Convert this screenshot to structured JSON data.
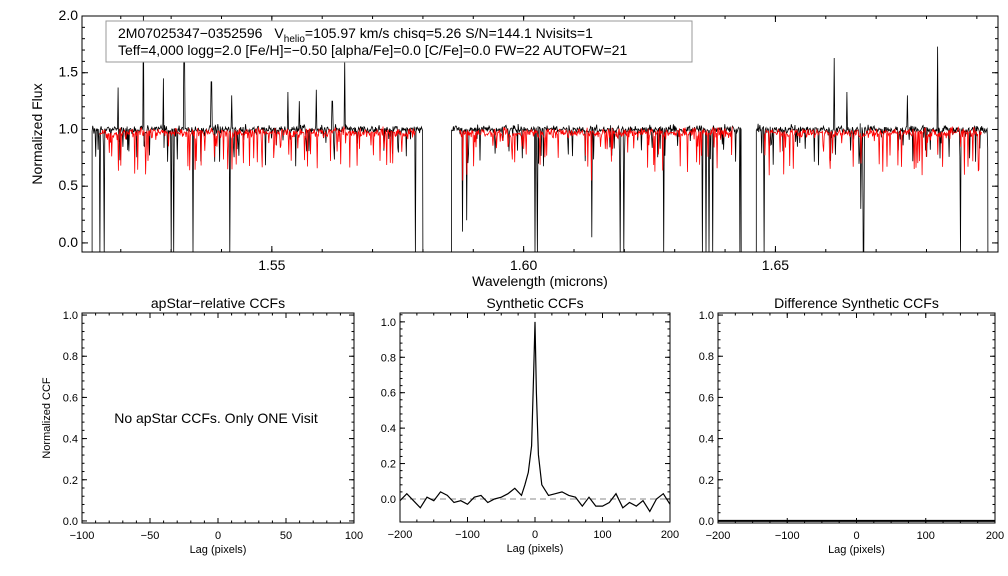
{
  "colors": {
    "observed": "#000000",
    "model": "#ff0000",
    "zero_line": "#888888"
  },
  "chart_data": [
    {
      "type": "line",
      "name": "spectrum",
      "xlabel": "Wavelength (microns)",
      "ylabel": "Normalized Flux",
      "xlim": [
        1.5123,
        1.6942
      ],
      "ylim": [
        -0.08,
        2.0
      ],
      "xticks": [
        1.55,
        1.6,
        1.65
      ],
      "xtick_labels": [
        "1.55",
        "1.60",
        "1.65"
      ],
      "yticks": [
        0.0,
        0.5,
        1.0,
        1.5,
        2.0
      ],
      "ytick_labels": [
        "0.0",
        "0.5",
        "1.0",
        "1.5",
        "2.0"
      ],
      "info_line1": {
        "star": "2M07025347−0352596",
        "v": "V",
        "v_sub": "helio",
        "v_rest": "=105.97 km/s  chisq=5.26  S/N=144.1  Nvisits=1"
      },
      "info_line2": "Teff=4,000 logg=2.0 [Fe/H]=−0.50 [alpha/Fe]=0.0 [C/Fe]=0.0 FW=22 AUTOFW=21",
      "chips_observed": [
        [
          1.5143,
          1.58
        ],
        [
          1.5857,
          1.6432
        ],
        [
          1.6462,
          1.6922
        ]
      ],
      "chips_model": [
        [
          1.5158,
          1.5785
        ],
        [
          1.5873,
          1.6415
        ],
        [
          1.6478,
          1.691
        ]
      ],
      "series": [
        {
          "name": "observed",
          "continuum": 1.0,
          "noise": 0.035,
          "emission_lines": [
            [
              1.5195,
              1.37
            ],
            [
              1.5245,
              2.05
            ],
            [
              1.5285,
              1.45
            ],
            [
              1.5326,
              1.75
            ],
            [
              1.538,
              1.42
            ],
            [
              1.542,
              1.3
            ],
            [
              1.5532,
              1.33
            ],
            [
              1.5555,
              1.25
            ],
            [
              1.5588,
              1.35
            ],
            [
              1.562,
              1.25
            ],
            [
              1.5645,
              1.62
            ],
            [
              1.6617,
              1.63
            ],
            [
              1.6642,
              1.33
            ],
            [
              1.6762,
              1.3
            ],
            [
              1.6822,
              1.73
            ]
          ],
          "deep_absorption": [
            [
              1.5159,
              -0.1
            ],
            [
              1.5167,
              -0.1
            ],
            [
              1.53,
              -0.1
            ],
            [
              1.5305,
              -0.1
            ],
            [
              1.5343,
              -0.1
            ],
            [
              1.5417,
              -0.1
            ],
            [
              1.5785,
              -0.1
            ],
            [
              1.5879,
              0.1
            ],
            [
              1.5887,
              0.2
            ],
            [
              1.6023,
              -0.1
            ],
            [
              1.6027,
              -0.1
            ],
            [
              1.6135,
              0.05
            ],
            [
              1.6192,
              -0.1
            ],
            [
              1.6199,
              -0.1
            ],
            [
              1.6278,
              -0.1
            ],
            [
              1.6355,
              -0.1
            ],
            [
              1.6362,
              -0.1
            ],
            [
              1.6368,
              -0.1
            ],
            [
              1.6375,
              -0.1
            ],
            [
              1.6429,
              -0.1
            ],
            [
              1.6478,
              -0.1
            ],
            [
              1.667,
              0.3
            ],
            [
              1.6675,
              -0.1
            ],
            [
              1.6868,
              -0.1
            ]
          ]
        },
        {
          "name": "model",
          "continuum": 0.97,
          "noise": 0.04
        }
      ]
    },
    {
      "type": "line",
      "name": "apstar-ccf",
      "title": "apStar−relative CCFs",
      "xlabel": "Lag (pixels)",
      "ylabel": "Normalized CCF",
      "xlim": [
        -100,
        100
      ],
      "ylim": [
        -0.01,
        1.01
      ],
      "xticks": [
        -100,
        -50,
        0,
        50,
        100
      ],
      "xtick_labels": [
        "−100",
        "−50",
        "0",
        "50",
        "100"
      ],
      "yticks": [
        0,
        0.2,
        0.4,
        0.6,
        0.8,
        1.0
      ],
      "ytick_labels": [
        "0.0",
        "0.2",
        "0.4",
        "0.6",
        "0.8",
        "1.0"
      ],
      "annotation": "No apStar CCFs.  Only ONE Visit"
    },
    {
      "type": "line",
      "name": "synthetic-ccf",
      "title": "Synthetic CCFs",
      "xlabel": "Lag (pixels)",
      "xlim": [
        -200,
        200
      ],
      "ylim": [
        -0.13,
        1.05
      ],
      "xticks": [
        -200,
        -100,
        0,
        100,
        200
      ],
      "xtick_labels": [
        "−200",
        "−100",
        "0",
        "100",
        "200"
      ],
      "yticks": [
        0,
        0.2,
        0.4,
        0.6,
        0.8,
        1.0
      ],
      "ytick_labels": [
        "0.0",
        "0.2",
        "0.4",
        "0.6",
        "0.8",
        "1.0"
      ],
      "x": [
        -200,
        -190,
        -180,
        -170,
        -160,
        -150,
        -140,
        -130,
        -120,
        -110,
        -100,
        -90,
        -80,
        -70,
        -60,
        -50,
        -40,
        -30,
        -20,
        -15,
        -10,
        -5,
        -2,
        0,
        2,
        5,
        10,
        15,
        20,
        30,
        40,
        50,
        60,
        70,
        80,
        90,
        100,
        110,
        120,
        130,
        140,
        150,
        160,
        170,
        180,
        190,
        200
      ],
      "y": [
        -0.01,
        0.03,
        -0.01,
        -0.05,
        0.01,
        -0.01,
        0.04,
        0.02,
        -0.02,
        -0.01,
        -0.03,
        0.01,
        0.02,
        -0.02,
        0.0,
        0.01,
        0.03,
        0.06,
        0.02,
        0.08,
        0.15,
        0.3,
        0.7,
        1.0,
        0.6,
        0.25,
        0.08,
        0.05,
        0.02,
        0.03,
        0.04,
        0.02,
        0.01,
        -0.04,
        0.01,
        -0.04,
        -0.04,
        -0.02,
        0.03,
        -0.05,
        -0.02,
        -0.04,
        -0.01,
        -0.07,
        0.0,
        0.03,
        -0.03
      ]
    },
    {
      "type": "line",
      "name": "difference-ccf",
      "title": "Difference Synthetic CCFs",
      "xlabel": "Lag (pixels)",
      "xlim": [
        -200,
        200
      ],
      "ylim": [
        -0.01,
        1.01
      ],
      "xticks": [
        -200,
        -100,
        0,
        100,
        200
      ],
      "xtick_labels": [
        "−200",
        "−100",
        "0",
        "100",
        "200"
      ],
      "yticks": [
        0,
        0.2,
        0.4,
        0.6,
        0.8,
        1.0
      ],
      "ytick_labels": [
        "0.0",
        "0.2",
        "0.4",
        "0.6",
        "0.8",
        "1.0"
      ],
      "x": [
        -200,
        200
      ],
      "y": [
        0,
        0
      ]
    }
  ]
}
